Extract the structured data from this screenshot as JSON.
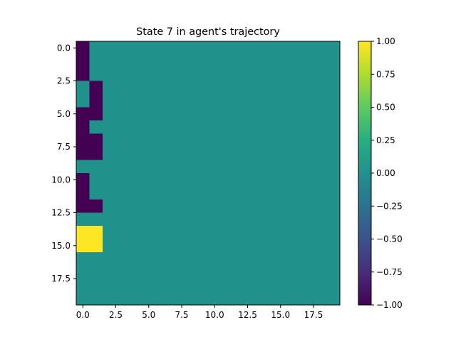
{
  "chart_data": {
    "type": "heatmap",
    "title": "State 7 in agent's trajectory",
    "rows": 20,
    "cols": 20,
    "xlim": [
      -0.5,
      19.5
    ],
    "ylim": [
      19.5,
      -0.5
    ],
    "x_ticks": [
      0.0,
      2.5,
      5.0,
      7.5,
      10.0,
      12.5,
      15.0,
      17.5
    ],
    "x_tick_labels": [
      "0.0",
      "2.5",
      "5.0",
      "7.5",
      "10.0",
      "12.5",
      "15.0",
      "17.5"
    ],
    "y_ticks": [
      0.0,
      2.5,
      5.0,
      7.5,
      10.0,
      12.5,
      15.0,
      17.5
    ],
    "y_tick_labels": [
      "0.0",
      "2.5",
      "5.0",
      "7.5",
      "10.0",
      "12.5",
      "15.0",
      "17.5"
    ],
    "colormap": "viridis",
    "vmin": -1.0,
    "vmax": 1.0,
    "colorbar_ticks": [
      1.0,
      0.75,
      0.5,
      0.25,
      0.0,
      -0.25,
      -0.5,
      -0.75,
      -1.0
    ],
    "colorbar_tick_labels": [
      "1.00",
      "0.75",
      "0.50",
      "0.25",
      "0.00",
      "−0.25",
      "−0.50",
      "−0.75",
      "−1.00"
    ],
    "grid": false,
    "cells": [
      {
        "row": 0,
        "col": 0,
        "value": -1
      },
      {
        "row": 1,
        "col": 0,
        "value": -1
      },
      {
        "row": 2,
        "col": 0,
        "value": -1
      },
      {
        "row": 3,
        "col": 1,
        "value": -1
      },
      {
        "row": 4,
        "col": 1,
        "value": -1
      },
      {
        "row": 5,
        "col": 0,
        "value": -1
      },
      {
        "row": 5,
        "col": 1,
        "value": -1
      },
      {
        "row": 6,
        "col": 0,
        "value": -1
      },
      {
        "row": 7,
        "col": 0,
        "value": -1
      },
      {
        "row": 7,
        "col": 1,
        "value": -1
      },
      {
        "row": 8,
        "col": 0,
        "value": -1
      },
      {
        "row": 8,
        "col": 1,
        "value": -1
      },
      {
        "row": 10,
        "col": 0,
        "value": -1
      },
      {
        "row": 11,
        "col": 0,
        "value": -1
      },
      {
        "row": 12,
        "col": 0,
        "value": -1
      },
      {
        "row": 12,
        "col": 1,
        "value": -1
      },
      {
        "row": 14,
        "col": 0,
        "value": 1
      },
      {
        "row": 14,
        "col": 1,
        "value": 1
      },
      {
        "row": 15,
        "col": 0,
        "value": 1
      },
      {
        "row": 15,
        "col": 1,
        "value": 1
      }
    ],
    "default_value": 0
  }
}
